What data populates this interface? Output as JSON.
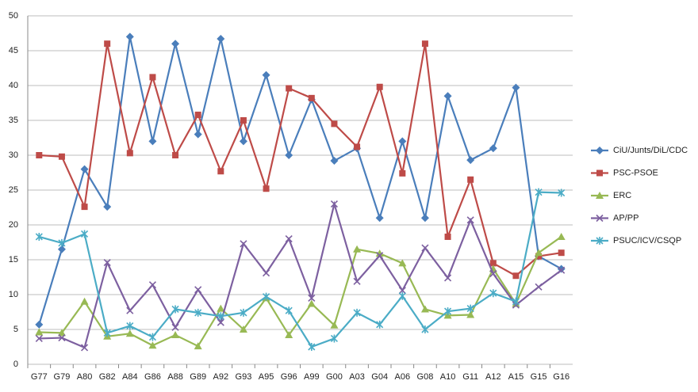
{
  "chart_data": {
    "type": "line",
    "categories": [
      "G77",
      "G79",
      "A80",
      "G82",
      "A84",
      "G86",
      "A88",
      "G89",
      "A92",
      "G93",
      "A95",
      "G96",
      "A99",
      "G00",
      "A03",
      "G04",
      "A06",
      "G08",
      "A10",
      "G11",
      "A12",
      "A15",
      "G15",
      "G16"
    ],
    "series": [
      {
        "name": "CiU/Junts/DiL/CDC",
        "color": "#4a7ebb",
        "values": [
          5.7,
          16.5,
          28,
          22.6,
          47,
          32,
          46,
          33,
          46.7,
          32,
          41.5,
          30,
          38,
          29.2,
          31,
          21,
          32,
          21,
          38.5,
          29.3,
          31,
          39.7,
          15.5,
          13.7
        ]
      },
      {
        "name": "PSC-PSOE",
        "color": "#be4b48",
        "values": [
          30,
          29.8,
          22.6,
          46,
          30.3,
          41.2,
          30,
          35.8,
          27.7,
          35,
          25.2,
          39.6,
          38.2,
          34.5,
          31.2,
          39.8,
          27.4,
          46,
          18.3,
          26.5,
          14.5,
          12.7,
          15.5,
          16
        ]
      },
      {
        "name": "ERC",
        "color": "#98b954",
        "values": [
          4.6,
          4.5,
          9,
          4,
          4.4,
          2.7,
          4.2,
          2.6,
          8,
          5,
          9.5,
          4.2,
          8.7,
          5.6,
          16.5,
          15.9,
          14.5,
          7.9,
          7,
          7.1,
          13.7,
          8.7,
          16,
          18.3
        ]
      },
      {
        "name": "AP/PP",
        "color": "#7d60a0",
        "values": [
          3.7,
          3.8,
          2.4,
          14.6,
          7.7,
          11.4,
          5.3,
          10.7,
          6,
          17.3,
          13.1,
          18,
          9.5,
          23,
          11.9,
          15.6,
          10.6,
          16.7,
          12.4,
          20.7,
          13,
          8.5,
          11.1,
          13.5
        ]
      },
      {
        "name": "PSUC/ICV/CSQP",
        "color": "#4bacc6",
        "values": [
          18.3,
          17.4,
          18.7,
          4.5,
          5.5,
          3.9,
          7.9,
          7.4,
          6.9,
          7.4,
          9.7,
          7.7,
          2.5,
          3.7,
          7.4,
          5.7,
          9.8,
          5,
          7.6,
          8,
          10.2,
          9,
          24.7,
          24.6
        ]
      }
    ],
    "ylim": [
      0,
      50
    ],
    "yticks": [
      0,
      5,
      10,
      15,
      20,
      25,
      30,
      35,
      40,
      45,
      50
    ],
    "grid": true,
    "legend": "right"
  }
}
